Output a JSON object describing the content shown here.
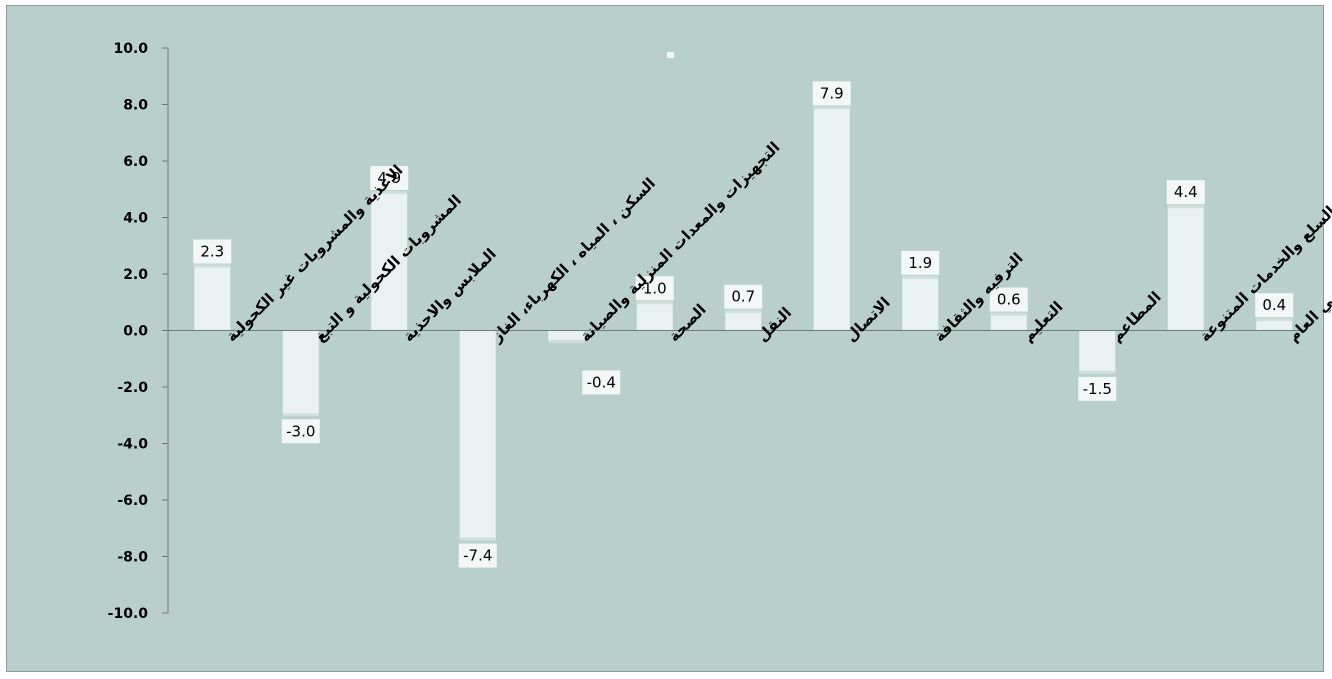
{
  "colors": {
    "background": "#b8cfcb",
    "bar_fill": "#e9f2f0",
    "bar_cap": "#cfdfdb",
    "label_box": "#f3f8f7",
    "axis": "#6b7d7b"
  },
  "chart_data": {
    "type": "bar",
    "title": "",
    "xlabel": "",
    "ylabel": "",
    "ylim": [
      -10,
      10
    ],
    "yticks": [
      "10.0",
      "8.0",
      "6.0",
      "4.0",
      "2.0",
      "0.0",
      "-2.0",
      "-4.0",
      "-6.0",
      "-8.0",
      "-10.0"
    ],
    "ytick_values": [
      10,
      8,
      6,
      4,
      2,
      0,
      -2,
      -4,
      -6,
      -8,
      -10
    ],
    "grid": false,
    "legend": "none",
    "categories": [
      "الاغذية والمشروبات غير الكحولية",
      "المشروبات الكحولية و التبغ",
      "الملابس والاحذية",
      "السكن ، المياه ، الكهرباء، الغاز",
      "التجهيزات والمعدات المنزلية والصيانة",
      "الصحة",
      "النقل",
      "الاتصال",
      "الترفيه والثقافة",
      "التعليم",
      "المطاعم",
      "السلع والخدمات المتنوعة",
      "الرقم القياسي العام"
    ],
    "values": [
      2.3,
      -3.0,
      4.9,
      -7.4,
      -0.4,
      1.0,
      0.7,
      7.9,
      1.9,
      0.6,
      -1.5,
      4.4,
      0.4
    ],
    "value_labels": [
      "2.3",
      "-3.0",
      "4.9",
      "-7.4",
      "-0.4",
      "1.0",
      "0.7",
      "7.9",
      "1.9",
      "0.6",
      "-1.5",
      "4.4",
      "0.4"
    ]
  }
}
